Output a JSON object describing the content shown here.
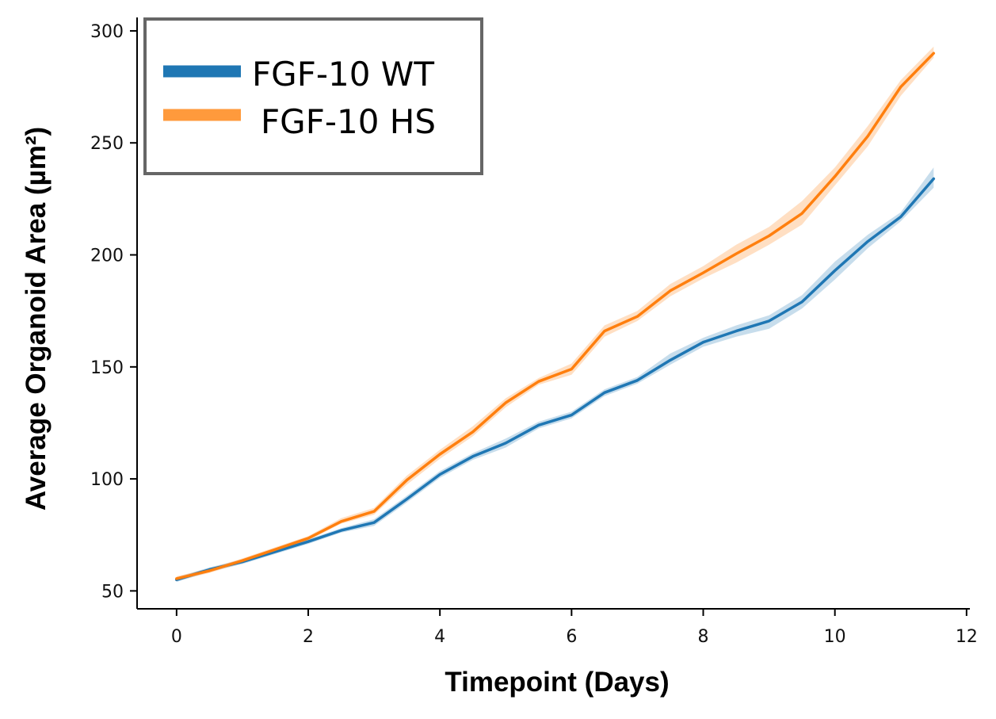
{
  "chart_data": {
    "type": "line",
    "xlabel": "Timepoint (Days)",
    "ylabel": "Average Organoid Area (µm²)",
    "xlim": [
      -0.6,
      12.05
    ],
    "ylim": [
      42,
      306
    ],
    "xticks": [
      0,
      2,
      4,
      6,
      8,
      10,
      12
    ],
    "yticks": [
      50,
      100,
      150,
      200,
      250,
      300
    ],
    "legend_position": "top-left",
    "grid": false,
    "x": [
      0,
      0.5,
      1,
      1.5,
      2,
      2.5,
      3,
      3.5,
      4,
      4.5,
      5,
      5.5,
      6,
      6.5,
      7,
      7.5,
      8,
      8.5,
      9,
      9.5,
      10,
      10.5,
      11,
      11.5
    ],
    "series": [
      {
        "name": "FGF-10 WT",
        "color": "#1f77b4",
        "values": [
          55,
          59.5,
          63,
          67.5,
          72,
          77,
          80.5,
          91,
          102,
          110,
          116,
          124,
          128.5,
          138.5,
          144,
          153,
          161,
          166,
          170.5,
          179,
          193,
          206,
          217,
          234
        ],
        "lower": [
          54,
          58.5,
          62,
          66.5,
          71,
          76,
          79,
          89.5,
          100.5,
          108.5,
          114,
          122.5,
          127,
          137,
          142.5,
          151,
          159,
          163.5,
          167,
          176,
          189,
          203,
          215,
          230
        ],
        "upper": [
          56,
          60.5,
          64,
          68.5,
          73,
          78,
          82,
          92.5,
          103.5,
          111.5,
          118,
          125.5,
          130,
          140,
          145.5,
          156,
          163,
          168.5,
          173,
          182,
          197,
          209,
          219,
          239
        ]
      },
      {
        "name": "FGF-10 HS",
        "color": "#ff7f0e",
        "values": [
          55.5,
          59,
          63.5,
          68.5,
          73.5,
          81,
          85.5,
          99.5,
          111,
          121,
          134,
          143.5,
          149,
          166,
          172.5,
          184,
          192,
          200.5,
          208.5,
          218.5,
          235,
          253,
          275,
          290
        ],
        "lower": [
          54.5,
          58,
          62.5,
          67.5,
          72.5,
          80,
          84,
          97.5,
          109,
          119,
          132,
          142,
          146.5,
          163.5,
          170.5,
          181.5,
          189.5,
          196.5,
          204.5,
          213.5,
          231,
          248.5,
          271,
          288
        ],
        "upper": [
          56.5,
          60,
          64.5,
          69.5,
          74.5,
          82.5,
          87,
          101.5,
          113,
          123.5,
          136,
          145,
          151.5,
          168.5,
          175,
          187,
          195,
          204.5,
          212.5,
          224,
          239,
          257.5,
          278,
          293
        ]
      }
    ]
  }
}
